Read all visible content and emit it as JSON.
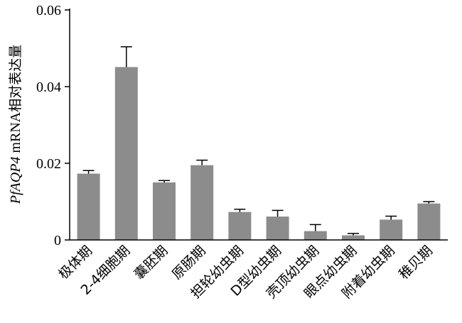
{
  "chart_data": {
    "type": "bar",
    "categories": [
      "极体期",
      "2-4细胞期",
      "囊胚期",
      "原肠期",
      "担轮幼虫期",
      "D型幼虫期",
      "壳顶幼虫期",
      "眼点幼虫期",
      "附着幼虫期",
      "稚贝期"
    ],
    "values": [
      0.0173,
      0.0451,
      0.015,
      0.0195,
      0.0073,
      0.0061,
      0.0023,
      0.0012,
      0.0053,
      0.0095
    ],
    "errors": [
      0.0008,
      0.0053,
      0.0005,
      0.0013,
      0.0007,
      0.0016,
      0.0017,
      0.0005,
      0.0009,
      0.0005
    ],
    "ylim": [
      0,
      0.06
    ],
    "yticks": [
      "0",
      "0.02",
      "0.04",
      "0.06"
    ],
    "ytick_values": [
      0,
      0.02,
      0.04,
      0.06
    ],
    "ylabel": {
      "italic_part": "PfAQP4",
      "roman_part": " mRNA",
      "cjk_part": "相对表达量"
    },
    "xlabel": "",
    "title": "",
    "grid": false,
    "colors": {
      "bar": "#8c8c8c",
      "axis": "#000000"
    }
  }
}
